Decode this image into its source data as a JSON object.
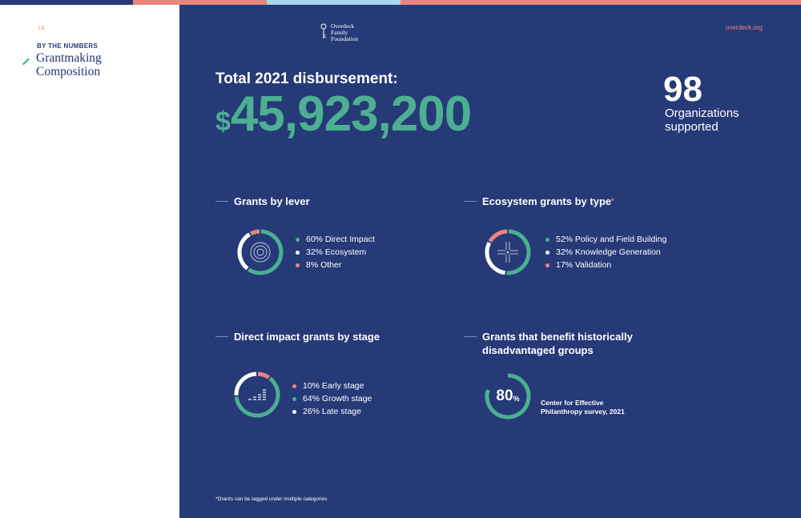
{
  "colors": {
    "navy": "#263a78",
    "green": "#4caf92",
    "coral": "#e8877e",
    "white": "#ffffff",
    "topbar": [
      "#263a78",
      "#e8877e",
      "#a9d6ef",
      "#e8877e"
    ]
  },
  "sidebar": {
    "page_number": "14.",
    "kicker": "BY THE NUMBERS",
    "title": "Grantmaking Composition",
    "icon": "pencil-icon"
  },
  "header": {
    "logo_text": [
      "Overdeck",
      "Family",
      "Foundation"
    ],
    "logo_icon": "key-logo-icon",
    "url": "overdeck.org"
  },
  "disbursement": {
    "label": "Total 2021 disbursement:",
    "currency": "$",
    "amount": "45,923,200"
  },
  "organizations": {
    "count": "98",
    "label": "Organizations supported"
  },
  "grants_by_lever": {
    "title": "Grants by lever",
    "icon": "concentric-circles-icon",
    "items": [
      {
        "label": "60% Direct Impact",
        "percent": 60,
        "color": "#4caf92"
      },
      {
        "label": "32% Ecosystem",
        "percent": 32,
        "color": "#ffffff"
      },
      {
        "label": "8% Other",
        "percent": 8,
        "color": "#e8877e"
      }
    ]
  },
  "ecosystem_by_type": {
    "title": "Ecosystem grants by type",
    "asterisk": "*",
    "icon": "crossroads-icon",
    "items": [
      {
        "label": "52% Policy and Field Building",
        "percent": 52,
        "color": "#4caf92"
      },
      {
        "label": "32% Knowledge Generation",
        "percent": 32,
        "color": "#ffffff"
      },
      {
        "label": "17% Validation",
        "percent": 17,
        "color": "#e8877e"
      }
    ]
  },
  "direct_by_stage": {
    "title": "Direct impact grants by stage",
    "icon": "growth-bars-icon",
    "items": [
      {
        "label": "10% Early stage",
        "percent": 10,
        "color": "#e8877e"
      },
      {
        "label": "64% Growth stage",
        "percent": 64,
        "color": "#4caf92"
      },
      {
        "label": "26% Late stage",
        "percent": 26,
        "color": "#ffffff"
      }
    ]
  },
  "disadvantaged": {
    "title_line1": "Grants that benefit historically",
    "title_line2": "disadvantaged groups",
    "value": "80",
    "percent": 80,
    "sign": "%",
    "source": "Center for Effective Philanthropy survey, 2021"
  },
  "footnote": "*Grants can be tagged under multiple categories"
}
